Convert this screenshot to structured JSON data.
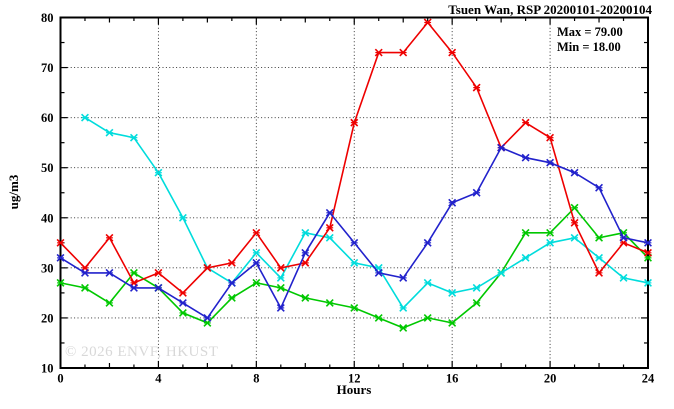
{
  "chart_data": {
    "type": "line",
    "title": "Tsuen Wan, RSP 20200101-20200104",
    "stats": {
      "max_label": "Max = 79.00",
      "min_label": "Min = 18.00"
    },
    "xlabel": "Hours",
    "ylabel": "ug/m3",
    "watermark": "© 2026 ENVF, HKUST",
    "xlim": [
      0,
      24
    ],
    "ylim": [
      10,
      80
    ],
    "x": [
      0,
      1,
      2,
      3,
      4,
      5,
      6,
      7,
      8,
      9,
      10,
      11,
      12,
      13,
      14,
      15,
      16,
      17,
      18,
      19,
      20,
      21,
      22,
      23,
      24
    ],
    "x_major_ticks": [
      0,
      4,
      8,
      12,
      16,
      20,
      24
    ],
    "y_major_ticks": [
      10,
      20,
      30,
      40,
      50,
      60,
      70,
      80
    ],
    "x_gridlines": [
      4,
      8,
      12,
      16,
      20
    ],
    "y_gridlines": [
      20,
      30,
      40,
      50,
      60,
      70
    ],
    "grid_on": true,
    "legend_position": "top-right-inside",
    "marker": "star",
    "series": [
      {
        "name": "green-series",
        "color": "#00c800",
        "values": [
          27,
          26,
          23,
          29,
          26,
          21,
          19,
          24,
          27,
          26,
          24,
          23,
          22,
          20,
          18,
          20,
          19,
          23,
          29,
          37,
          37,
          42,
          36,
          37,
          32
        ]
      },
      {
        "name": "cyan-series",
        "color": "#00dcdc",
        "values": [
          null,
          60,
          57,
          56,
          49,
          40,
          30,
          27,
          33,
          28,
          37,
          36,
          31,
          30,
          22,
          27,
          25,
          26,
          29,
          32,
          35,
          36,
          32,
          28,
          27
        ]
      },
      {
        "name": "red-series",
        "color": "#ee0000",
        "values": [
          35,
          30,
          36,
          27,
          29,
          25,
          30,
          31,
          37,
          30,
          31,
          38,
          59,
          73,
          73,
          79,
          73,
          66,
          54,
          59,
          56,
          39,
          29,
          35,
          33
        ]
      },
      {
        "name": "blue-series",
        "color": "#2222cc",
        "values": [
          32,
          29,
          29,
          26,
          26,
          23,
          20,
          27,
          31,
          22,
          33,
          41,
          35,
          29,
          28,
          35,
          43,
          45,
          54,
          52,
          51,
          49,
          46,
          36,
          35
        ]
      }
    ]
  }
}
